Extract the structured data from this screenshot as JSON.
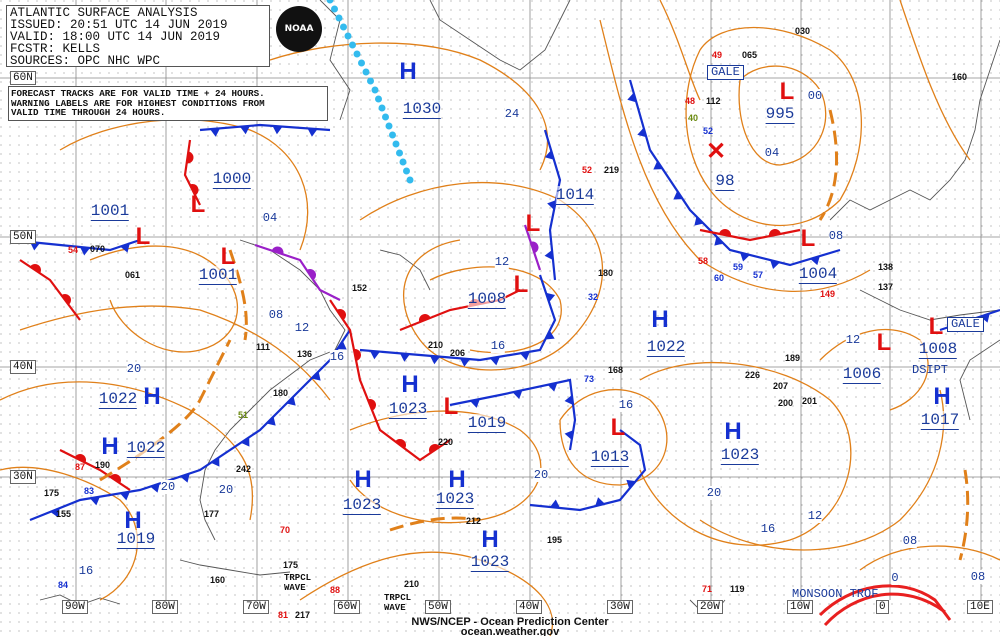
{
  "header": {
    "title": "ATLANTIC SURFACE ANALYSIS",
    "issued": "ISSUED: 20:51 UTC 14 JUN 2019",
    "valid": "VALID:  18:00 UTC 14 JUN 2019",
    "forecaster": "FCSTR:  KELLS",
    "sources": "SOURCES: OPC NHC WPC",
    "logo_text": "NOAA"
  },
  "note": [
    "FORECAST TRACKS ARE FOR VALID TIME + 24 HOURS.",
    "WARNING LABELS ARE FOR HIGHEST CONDITIONS FROM",
    "VALID TIME THROUGH 24 HOURS."
  ],
  "footer": {
    "agency": "NWS/NCEP - Ocean Prediction Center",
    "url": "ocean.weather.gov"
  },
  "latitude_labels": [
    "60N",
    "50N",
    "40N",
    "30N"
  ],
  "longitude_labels": [
    "90W",
    "80W",
    "70W",
    "60W",
    "50W",
    "40W",
    "30W",
    "20W",
    "10W",
    "0",
    "10E"
  ],
  "pressure_centers": [
    {
      "type": "H",
      "value": "1030"
    },
    {
      "type": "L",
      "value": "1000"
    },
    {
      "type": "L",
      "value": "1001"
    },
    {
      "type": "L",
      "value": "1001"
    },
    {
      "type": "H",
      "value": "1022"
    },
    {
      "type": "H",
      "value": "1022"
    },
    {
      "type": "H",
      "value": "1019"
    },
    {
      "type": "H",
      "value": "1023"
    },
    {
      "type": "L",
      "value": "1019"
    },
    {
      "type": "H",
      "value": "1023"
    },
    {
      "type": "H",
      "value": "1023"
    },
    {
      "type": "H",
      "value": "1023"
    },
    {
      "type": "L",
      "value": "1008"
    },
    {
      "type": "L",
      "value": "1014"
    },
    {
      "type": "H",
      "value": "1022"
    },
    {
      "type": "L",
      "value": "1013"
    },
    {
      "type": "H",
      "value": "1023"
    },
    {
      "type": "L",
      "value": "995"
    },
    {
      "type": "X",
      "value": "98"
    },
    {
      "type": "L",
      "value": "1004"
    },
    {
      "type": "L",
      "value": "1006"
    },
    {
      "type": "L",
      "value": "1008"
    },
    {
      "type": "H",
      "value": "1017"
    }
  ],
  "isobar_labels": [
    "24",
    "04",
    "12",
    "08",
    "16",
    "20",
    "20",
    "20",
    "16",
    "20",
    "12",
    "16",
    "16",
    "04",
    "00",
    "08",
    "12",
    "20",
    "16",
    "12",
    "08",
    "08",
    "0"
  ],
  "warnings": [
    "GALE",
    "GALE"
  ],
  "annotations": [
    "DSIPT",
    "MONSOON TROF",
    "TRPCL WAVE",
    "TRPCL WAVE"
  ],
  "observations": [
    "065",
    "112",
    "52",
    "49",
    "48",
    "40",
    "030",
    "219",
    "52",
    "180",
    "32",
    "168",
    "195",
    "212",
    "220",
    "210",
    "206",
    "189",
    "226",
    "207",
    "201",
    "200",
    "119",
    "71",
    "217",
    "81",
    "210",
    "175",
    "160",
    "177",
    "155",
    "175",
    "190",
    "87",
    "83",
    "84",
    "242",
    "180",
    "136",
    "111",
    "152",
    "070",
    "54",
    "061",
    "137",
    "149",
    "138",
    "160",
    "58",
    "73",
    "88",
    "70",
    "51",
    "57",
    "60",
    "59"
  ],
  "colors": {
    "high": "#1530d0",
    "low": "#e01010",
    "isobar": "#e0801a",
    "cold_front": "#1530d0",
    "warm_front": "#e01010",
    "occluded_front": "#9a20c8",
    "ice_edge": "#33bbee",
    "label": "#1a3a9a"
  }
}
